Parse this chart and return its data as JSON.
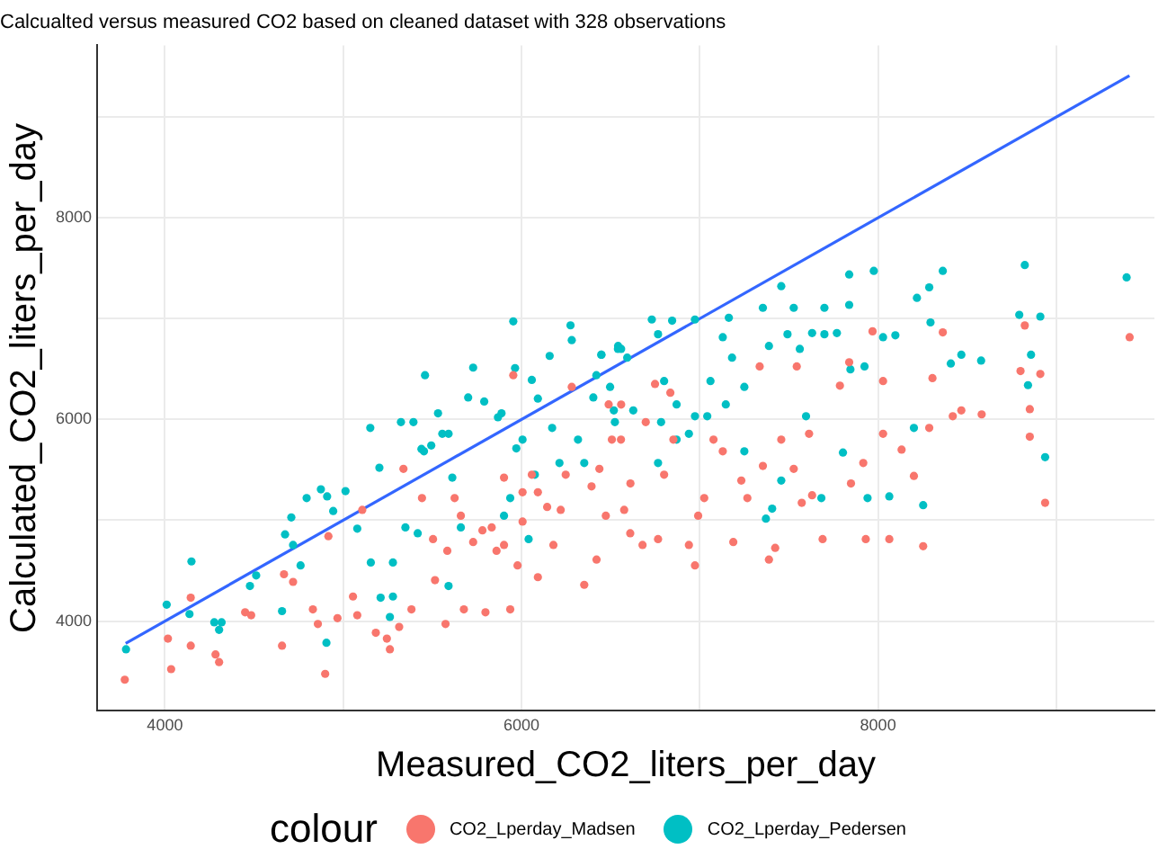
{
  "chart_data": {
    "type": "scatter",
    "title": "Calcualted versus measured CO2 based on cleaned dataset with 328 observations",
    "xlabel": "Measured_CO2_liters_per_day",
    "ylabel": "Calculated_CO2_liters_per_day",
    "legend_title": "colour",
    "legend": "bottom",
    "grid": true,
    "marker": "circle",
    "xlim": [
      3620,
      9550
    ],
    "ylim": [
      3110,
      9710
    ],
    "xticks": [
      4000,
      {
        "value": 5000,
        "label": null
      },
      6000,
      {
        "value": 7000,
        "label": null
      },
      8000,
      {
        "value": 9000,
        "label": null
      }
    ],
    "yticks": [
      4000,
      {
        "value": 5000,
        "label": null
      },
      6000,
      {
        "value": 7000,
        "label": null
      },
      8000,
      {
        "value": 9000,
        "label": null
      }
    ],
    "series": [
      {
        "name": "CO2_Lperday_Madsen",
        "color": "#f8766d",
        "x": [
          3775,
          4017,
          4035,
          4145,
          4145,
          4284,
          4304,
          4450,
          4484,
          4657,
          4668,
          4719,
          4830,
          4858,
          4899,
          4917,
          4968,
          5055,
          5079,
          5107,
          5183,
          5245,
          5262,
          5314,
          5338,
          5383,
          5442,
          5515,
          5574,
          5584,
          5625,
          5677,
          5729,
          5798,
          5833,
          5860,
          5902,
          5937,
          5954,
          5978,
          6006,
          6058,
          6092,
          6092,
          6179,
          6220,
          6282,
          6352,
          6393,
          6421,
          6473,
          6507,
          6559,
          6611,
          5504,
          5660,
          5781,
          5902,
          6006,
          6144,
          6248,
          6489,
          6558,
          6437,
          6610,
          6576,
          6697,
          6749,
          6679,
          6766,
          6800,
          6835,
          6852,
          6939,
          6973,
          6991,
          7025,
          7077,
          7129,
          7188,
          7233,
          7267,
          7336,
          7354,
          7388,
          7423,
          7457,
          7527,
          7544,
          7572,
          7613,
          7630,
          7689,
          7786,
          7838,
          7848,
          7917,
          7931,
          7969,
          8028,
          8028,
          8063,
          8132,
          8201,
          8253,
          8287,
          8305,
          8363,
          8419,
          8467,
          8581,
          8799,
          8823,
          8910,
          8851,
          8851,
          8937,
          9411
        ],
        "values": [
          3419,
          3826,
          3524,
          4232,
          3756,
          3669,
          3594,
          4087,
          4058,
          3756,
          4465,
          4389,
          4116,
          3971,
          3477,
          4842,
          4029,
          4244,
          4058,
          5103,
          3884,
          3826,
          3721,
          3942,
          5510,
          4116,
          5220,
          4406,
          3971,
          4697,
          5220,
          4116,
          4784,
          4087,
          4929,
          4697,
          4755,
          4116,
          6439,
          4552,
          4987,
          5452,
          4436,
          5278,
          4755,
          5103,
          6323,
          4360,
          5336,
          4610,
          5045,
          5800,
          6148,
          5365,
          4813,
          5045,
          4900,
          5423,
          5278,
          5132,
          5452,
          6149,
          5800,
          5510,
          4871,
          5103,
          5974,
          6352,
          4755,
          4813,
          5452,
          6265,
          5800,
          4755,
          4552,
          5045,
          5220,
          5800,
          5684,
          4784,
          5394,
          5220,
          6526,
          5539,
          4610,
          4726,
          5800,
          5510,
          6526,
          5173,
          5858,
          5248,
          4813,
          6335,
          6567,
          5365,
          5568,
          4813,
          6874,
          6381,
          5858,
          4813,
          5701,
          5440,
          4743,
          5916,
          6410,
          6863,
          6032,
          6090,
          6050,
          6480,
          6932,
          6451,
          6102,
          5829,
          5173,
          6816
        ]
      },
      {
        "name": "CO2_Lperday_Pedersen",
        "color": "#00bfc4",
        "x": [
          3782,
          4010,
          4149,
          4138,
          4277,
          4318,
          4304,
          4477,
          4512,
          4657,
          4674,
          4719,
          4709,
          4761,
          4795,
          4875,
          4910,
          4944,
          4906,
          5013,
          5079,
          5152,
          5155,
          5203,
          5210,
          5262,
          5279,
          5324,
          5349,
          5394,
          5439,
          5453,
          5459,
          5494,
          5532,
          5556,
          5591,
          5612,
          5701,
          5729,
          5791,
          5868,
          5888,
          5954,
          5964,
          5971,
          6058,
          6092,
          6158,
          6172,
          6275,
          6282,
          6352,
          6403,
          6448,
          6497,
          6542,
          6559,
          6518,
          6040,
          5902,
          5660,
          5591,
          5418,
          5279,
          5937,
          6075,
          6213,
          6317,
          6006,
          6420,
          6448,
          6541,
          6593,
          6731,
          6766,
          6845,
          6800,
          6783,
          6870,
          6973,
          6973,
          7060,
          7129,
          7163,
          7181,
          7250,
          7354,
          7388,
          7457,
          7527,
          7492,
          7561,
          7630,
          7699,
          7699,
          7769,
          7838,
          7838,
          7845,
          7924,
          7976,
          8028,
          8097,
          8218,
          8287,
          8294,
          8363,
          8408,
          8467,
          8578,
          8823,
          8792,
          8910,
          8858,
          8841,
          8937,
          9394,
          8201,
          8253,
          8063,
          7941,
          7803,
          7682,
          7371,
          7406,
          7457,
          7250,
          7042,
          6939,
          6766,
          6627,
          6524,
          6870,
          7146,
          7596
        ],
        "values": [
          3721,
          4163,
          4592,
          4070,
          3988,
          3988,
          3913,
          4348,
          4453,
          4099,
          4860,
          4755,
          5028,
          4552,
          5220,
          5307,
          5237,
          5092,
          3785,
          5289,
          4917,
          5916,
          4581,
          5521,
          4232,
          4041,
          4244,
          5974,
          4929,
          5974,
          5707,
          5684,
          6439,
          5742,
          6061,
          5858,
          5858,
          5423,
          6218,
          6514,
          6178,
          6021,
          6061,
          6973,
          6509,
          5713,
          6392,
          6207,
          6630,
          5916,
          6933,
          6787,
          5568,
          6218,
          6642,
          6323,
          6729,
          6700,
          6090,
          4813,
          5045,
          4929,
          4348,
          4871,
          4581,
          5220,
          5452,
          5568,
          5800,
          5800,
          6439,
          6642,
          6700,
          6613,
          6991,
          6845,
          6979,
          6381,
          5974,
          6149,
          6991,
          6032,
          6381,
          6816,
          7008,
          6613,
          6323,
          7107,
          6729,
          7322,
          7107,
          6845,
          6700,
          6857,
          7107,
          6845,
          6857,
          7438,
          7136,
          6497,
          6526,
          7473,
          6816,
          6834,
          7206,
          7310,
          6962,
          7473,
          6555,
          6642,
          6584,
          7531,
          7037,
          7020,
          6642,
          6340,
          5626,
          7409,
          5916,
          5150,
          5237,
          5220,
          5672,
          5220,
          5016,
          5115,
          5394,
          5684,
          6032,
          5858,
          5568,
          6090,
          5974,
          5800,
          6149,
          6032
        ]
      },
      {
        "type": "line",
        "marker": "none",
        "color": "#3366ff",
        "x": [
          3780,
          9410
        ],
        "values": [
          3780,
          9410
        ]
      }
    ]
  }
}
